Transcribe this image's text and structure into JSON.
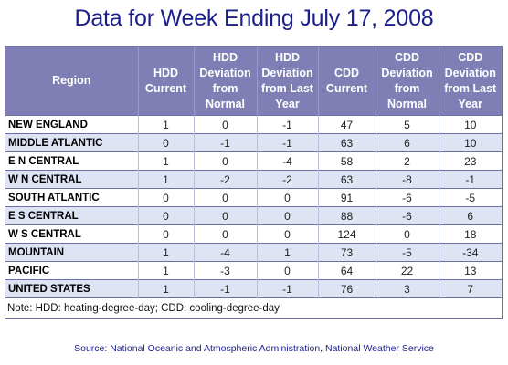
{
  "title": "Data for Week Ending July 17, 2008",
  "chart_data": {
    "type": "table",
    "columns": [
      "Region",
      "HDD Current",
      "HDD Deviation from Normal",
      "HDD Deviation from Last Year",
      "CDD Current",
      "CDD Deviation from Normal",
      "CDD Deviation from Last Year"
    ],
    "rows": [
      [
        "NEW ENGLAND",
        "1",
        "0",
        "-1",
        "47",
        "5",
        "10"
      ],
      [
        "MIDDLE ATLANTIC",
        "0",
        "-1",
        "-1",
        "63",
        "6",
        "10"
      ],
      [
        "E N CENTRAL",
        "1",
        "0",
        "-4",
        "58",
        "2",
        "23"
      ],
      [
        "W N CENTRAL",
        "1",
        "-2",
        "-2",
        "63",
        "-8",
        "-1"
      ],
      [
        "SOUTH ATLANTIC",
        "0",
        "0",
        "0",
        "91",
        "-6",
        "-5"
      ],
      [
        "E S CENTRAL",
        "0",
        "0",
        "0",
        "88",
        "-6",
        "6"
      ],
      [
        "W S CENTRAL",
        "0",
        "0",
        "0",
        "124",
        "0",
        "18"
      ],
      [
        "MOUNTAIN",
        "1",
        "-4",
        "1",
        "73",
        "-5",
        "-34"
      ],
      [
        "PACIFIC",
        "1",
        "-3",
        "0",
        "64",
        "22",
        "13"
      ],
      [
        "UNITED STATES",
        "1",
        "-1",
        "-1",
        "76",
        "3",
        "7"
      ]
    ],
    "note": "Note: HDD: heating-degree-day; CDD: cooling-degree-day"
  },
  "source": "Source:  National Oceanic and Atmospheric Administration, National Weather Service",
  "colors": {
    "title": "#1a1f8c",
    "header_bg": "#7f7fb5",
    "row_alt": "#dfe4f4"
  }
}
